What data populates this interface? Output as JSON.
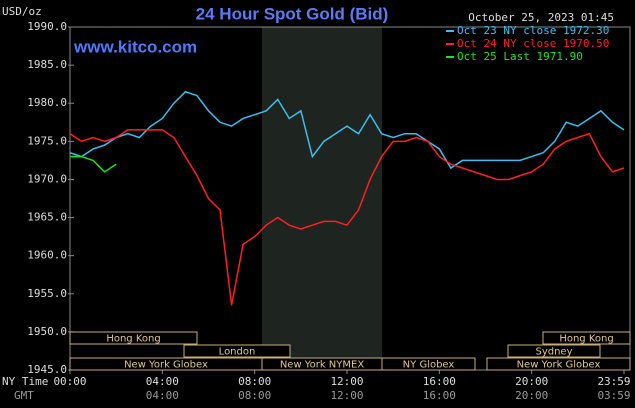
{
  "chart_data": {
    "type": "line",
    "title": "24 Hour Spot Gold (Bid)",
    "y_label": "USD/oz",
    "site": "www.kitco.com",
    "timestamp": "October 25, 2023 01:45",
    "x_label": "NY Time",
    "x2_label": "GMT",
    "x": [
      0,
      0.5,
      1,
      1.5,
      2,
      2.5,
      3,
      3.5,
      4,
      4.5,
      5,
      5.5,
      6,
      6.5,
      7,
      7.5,
      8,
      8.5,
      9,
      9.5,
      10,
      10.5,
      11,
      11.5,
      12,
      12.5,
      13,
      13.5,
      14,
      14.5,
      15,
      15.5,
      16,
      16.5,
      17,
      17.5,
      18,
      18.5,
      19,
      19.5,
      20,
      20.5,
      21,
      21.5,
      22,
      22.5,
      23,
      23.5,
      24
    ],
    "series": [
      {
        "name": "Oct 23 NY close 1972.30",
        "color": "#38c0f0",
        "values": [
          1973.5,
          1973,
          1974,
          1974.5,
          1975.5,
          1976,
          1975.5,
          1977,
          1978,
          1980,
          1981.5,
          1981,
          1979,
          1977.5,
          1977,
          1978,
          1978.5,
          1979,
          1980.5,
          1978,
          1979,
          1973,
          1975,
          1976,
          1977,
          1976,
          1978.5,
          1976,
          1975.5,
          1976,
          1976,
          1975,
          1974,
          1971.5,
          1972.5,
          1972.5,
          1972.5,
          1972.5,
          1972.5,
          1972.5,
          1973,
          1973.5,
          1975,
          1977.5,
          1977,
          1978,
          1979,
          1977.5,
          1976.5
        ]
      },
      {
        "name": "Oct 24 NY close 1970.50",
        "color": "#ff2020",
        "values": [
          1976,
          1975,
          1975.5,
          1975,
          1975.5,
          1976.5,
          1976.5,
          1976.5,
          1976.5,
          1975.5,
          1973,
          1970.5,
          1967.5,
          1966,
          1953.5,
          1961.5,
          1962.5,
          1964,
          1965,
          1964,
          1963.5,
          1964,
          1964.5,
          1964.5,
          1964,
          1966,
          1970,
          1973,
          1975,
          1975,
          1975.5,
          1975,
          1973,
          1972,
          1971.5,
          1971,
          1970.5,
          1970,
          1970,
          1970.5,
          1971,
          1972,
          1974,
          1975,
          1975.5,
          1976,
          1973,
          1971,
          1971.5
        ]
      },
      {
        "name": "Oct 25 Last 1971.90",
        "color": "#20e020",
        "values": [
          1973,
          1973,
          1972.5,
          1971,
          1972,
          null,
          null,
          null,
          null,
          null,
          null,
          null,
          null,
          null,
          null,
          null,
          null,
          null,
          null,
          null,
          null,
          null,
          null,
          null,
          null,
          null,
          null,
          null,
          null,
          null,
          null,
          null,
          null,
          null,
          null,
          null,
          null,
          null,
          null,
          null,
          null,
          null,
          null,
          null,
          null,
          null,
          null,
          null,
          null
        ]
      }
    ],
    "xlim": [
      0,
      24
    ],
    "xticks": [
      {
        "value": 0,
        "label": "00:00"
      },
      {
        "value": 4,
        "label": "04:00"
      },
      {
        "value": 8,
        "label": "08:00"
      },
      {
        "value": 12,
        "label": "12:00"
      },
      {
        "value": 16,
        "label": "16:00"
      },
      {
        "value": 20,
        "label": "20:00"
      },
      {
        "value": 24,
        "label": "23:59"
      }
    ],
    "x2ticks": [
      "04:00",
      "08:00",
      "12:00",
      "16:00",
      "20:00",
      "03:59"
    ],
    "ylim": [
      1945,
      1990
    ],
    "yticks": [
      {
        "value": 1945,
        "label": "1945.0"
      },
      {
        "value": 1950,
        "label": "1950.0"
      },
      {
        "value": 1955,
        "label": "1955.0"
      },
      {
        "value": 1960,
        "label": "1960.0"
      },
      {
        "value": 1965,
        "label": "1965.0"
      },
      {
        "value": 1970,
        "label": "1970.0"
      },
      {
        "value": 1975,
        "label": "1975.0"
      },
      {
        "value": 1980,
        "label": "1980.0"
      },
      {
        "value": 1985,
        "label": "1985.0"
      },
      {
        "value": 1990,
        "label": "1990.0"
      }
    ],
    "grid": false,
    "sessions": [
      "Hong Kong",
      "London",
      "New York Globex",
      "New York NYMEX",
      "NY Globex",
      "Sydney",
      "Hong Kong",
      "New York Globex"
    ]
  }
}
